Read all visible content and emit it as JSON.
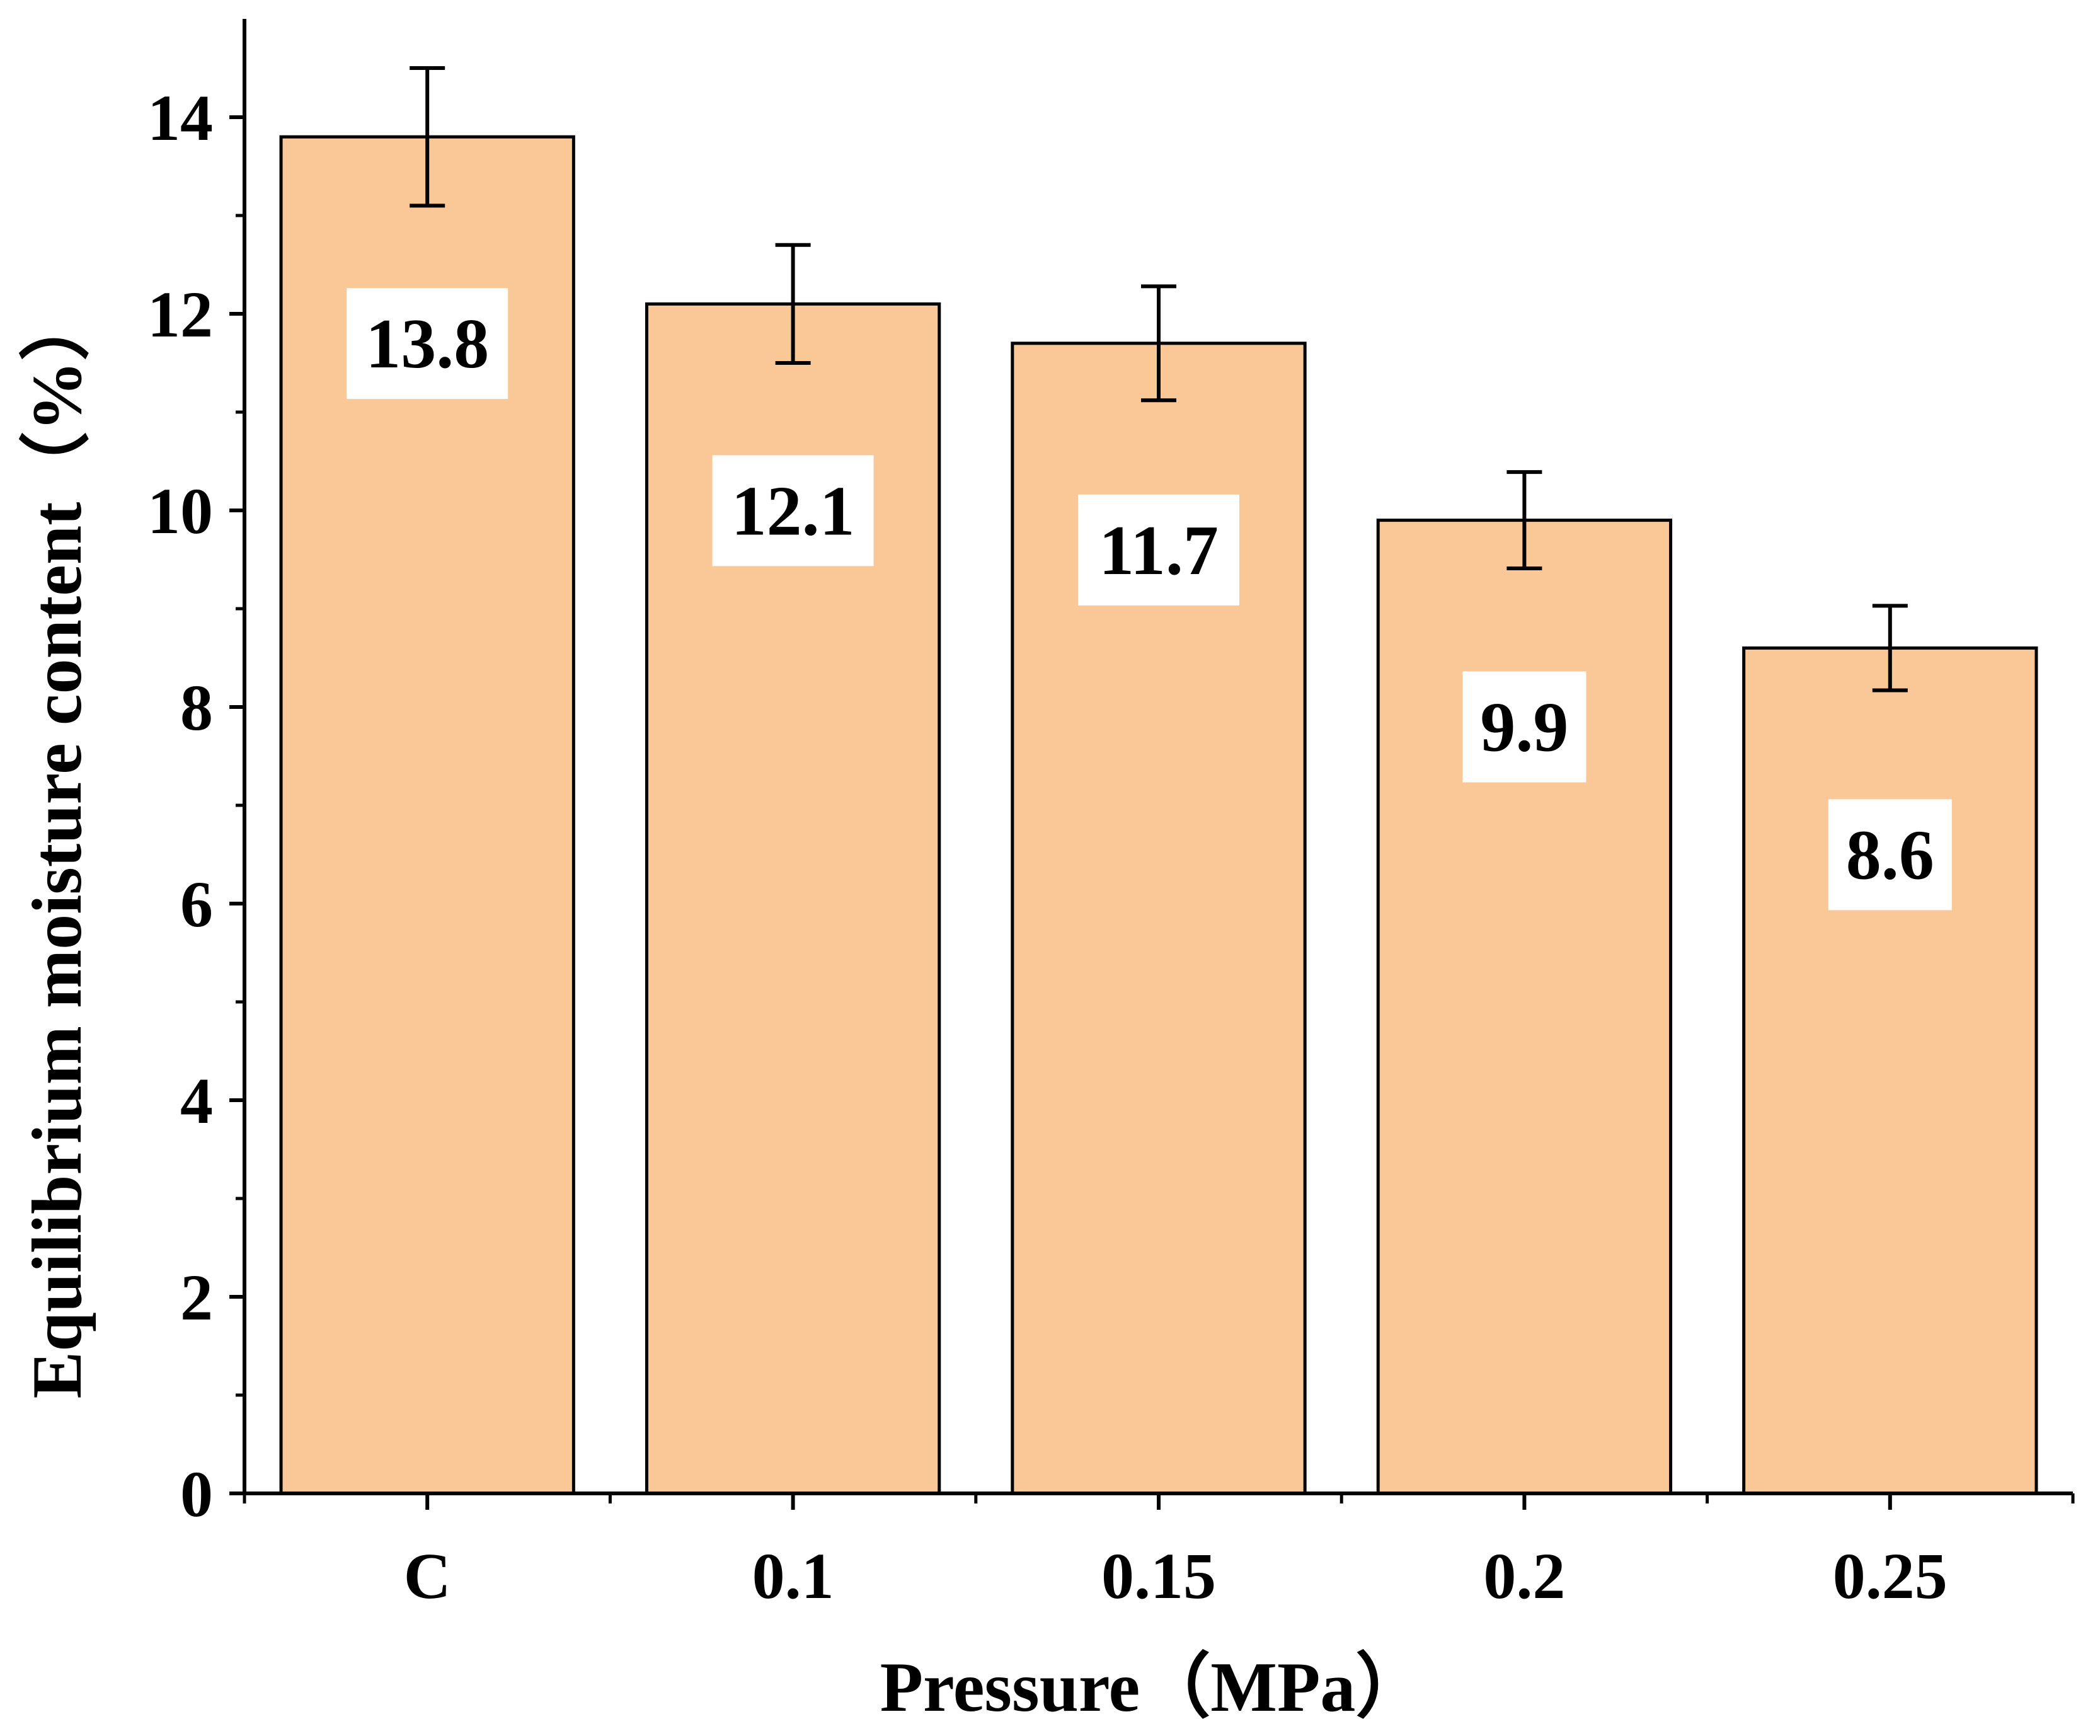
{
  "chart_data": {
    "type": "bar",
    "categories": [
      "C",
      "0.1",
      "0.15",
      "0.2",
      "0.25"
    ],
    "values": [
      13.8,
      12.1,
      11.7,
      9.9,
      8.6
    ],
    "errors": [
      0.7,
      0.6,
      0.58,
      0.49,
      0.43
    ],
    "data_labels": [
      "13.8",
      "12.1",
      "11.7",
      "9.9",
      "8.6"
    ],
    "title": "",
    "xlabel": "Pressure（MPa）",
    "ylabel": "Equilibrium moisture content（%）",
    "ylim": [
      0,
      15
    ],
    "yticks": [
      0,
      2,
      4,
      6,
      8,
      10,
      12,
      14
    ],
    "ytick_labels": [
      "0",
      "2",
      "4",
      "6",
      "8",
      "10",
      "12",
      "14"
    ],
    "grid": false,
    "legend": "none",
    "colors": {
      "bar_fill": "#FAC796",
      "bar_stroke": "#000000",
      "axis": "#000000",
      "label_box": "#FFFFFF"
    }
  }
}
